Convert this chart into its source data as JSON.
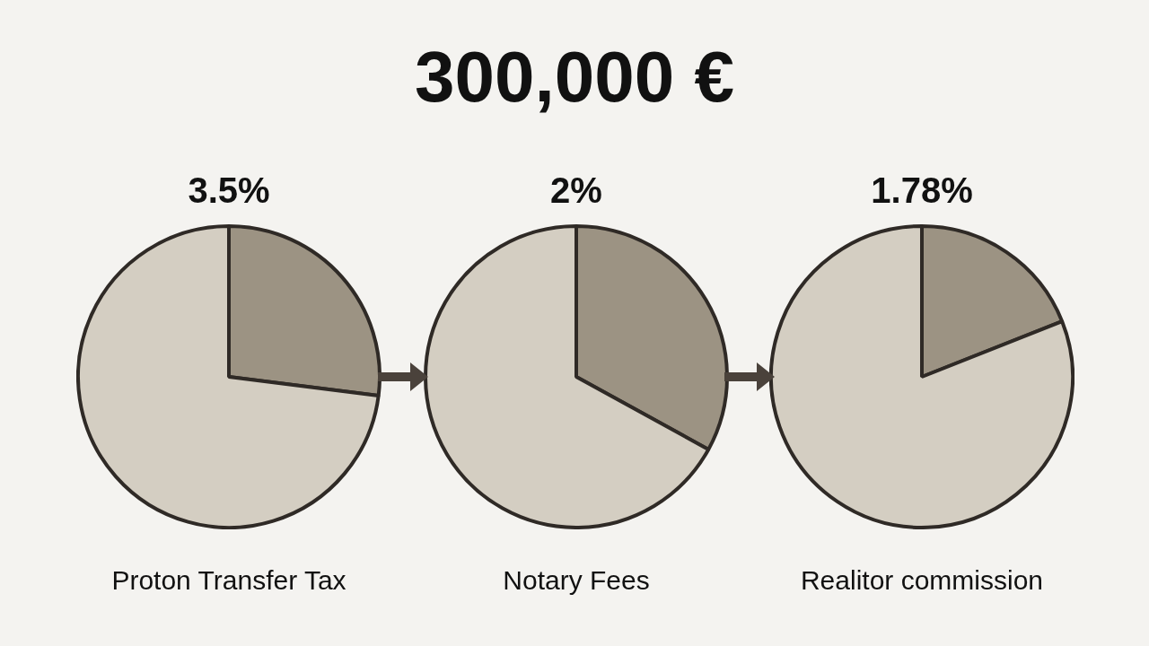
{
  "chart_data": [
    {
      "type": "other",
      "title": "300,000 €"
    },
    {
      "type": "pie",
      "title": "3.5%",
      "xlabel": "Proton Transfer Tax",
      "categories": [
        null,
        null
      ],
      "values": [
        27,
        73
      ],
      "colors": [
        "#9c9383",
        "#d4cec2"
      ]
    },
    {
      "type": "pie",
      "title": "2%",
      "xlabel": "Notary Fees",
      "categories": [
        null,
        null
      ],
      "values": [
        33,
        67
      ],
      "colors": [
        "#9c9383",
        "#d4cec2"
      ]
    },
    {
      "type": "pie",
      "title": "1.78%",
      "xlabel": "Realitor commission",
      "categories": [
        null,
        null
      ],
      "values": [
        19,
        81
      ],
      "colors": [
        "#9c9383",
        "#d4cec2"
      ]
    }
  ]
}
